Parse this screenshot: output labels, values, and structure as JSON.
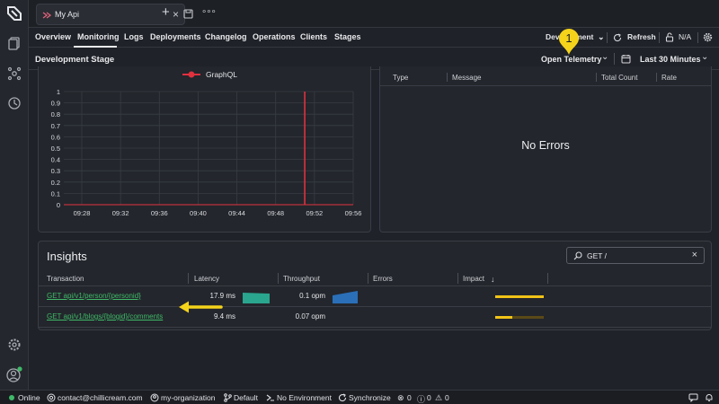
{
  "tabs": {
    "doc_tab_title": "My Api",
    "add_label": "+"
  },
  "nav": {
    "items": [
      "Overview",
      "Monitoring",
      "Logs",
      "Deployments",
      "Changelog",
      "Operations",
      "Clients",
      "Stages"
    ],
    "active": "Monitoring",
    "stage_selector": "Development",
    "refresh": "Refresh",
    "lock_value": "N/A"
  },
  "stage": {
    "title": "Development Stage",
    "telemetry": "Open Telemetry",
    "time_range": "Last 30 Minutes",
    "callout_number": "1"
  },
  "chart_data": {
    "type": "line",
    "legend": [
      "GraphQL"
    ],
    "series": [
      {
        "name": "GraphQL",
        "color": "#e0313f",
        "x": [
          "09:51"
        ],
        "values": [
          1
        ]
      }
    ],
    "x_ticks": [
      "09:28",
      "09:32",
      "09:36",
      "09:40",
      "09:44",
      "09:48",
      "09:52",
      "09:56"
    ],
    "y_ticks": [
      "0",
      "0.1",
      "0.2",
      "0.3",
      "0.4",
      "0.5",
      "0.6",
      "0.7",
      "0.8",
      "0.9",
      "1"
    ],
    "ylim": [
      0,
      1
    ],
    "grid": true,
    "legend_position": "top-center"
  },
  "errors": {
    "columns": [
      "Type",
      "Message",
      "Total Count",
      "Rate"
    ],
    "empty": "No Errors"
  },
  "insights": {
    "title": "Insights",
    "search_value": "GET /",
    "columns": [
      "Transaction",
      "Latency",
      "Throughput",
      "Errors",
      "Impact"
    ],
    "rows": [
      {
        "transaction": "GET api/v1/person/{personid}",
        "latency": "17.9 ms",
        "throughput": "0.1 opm",
        "impact": 1.0
      },
      {
        "transaction": "GET api/v1/blogs/{blogid}/comments",
        "latency": "9.4 ms",
        "throughput": "0.07 opm",
        "impact": 0.36
      }
    ]
  },
  "status": {
    "online": "Online",
    "email": "contact@chillicream.com",
    "org": "my-organization",
    "branch": "Default",
    "environment": "No Environment",
    "sync": "Synchronize",
    "errors": "0",
    "info": "0",
    "warnings": "0"
  },
  "colors": {
    "accent_green": "#3fb968",
    "impact_yellow": "#f2c318",
    "callout_yellow": "#f5d31b",
    "latency_teal": "#2aa58e",
    "throughput_blue": "#2a6fb8"
  }
}
